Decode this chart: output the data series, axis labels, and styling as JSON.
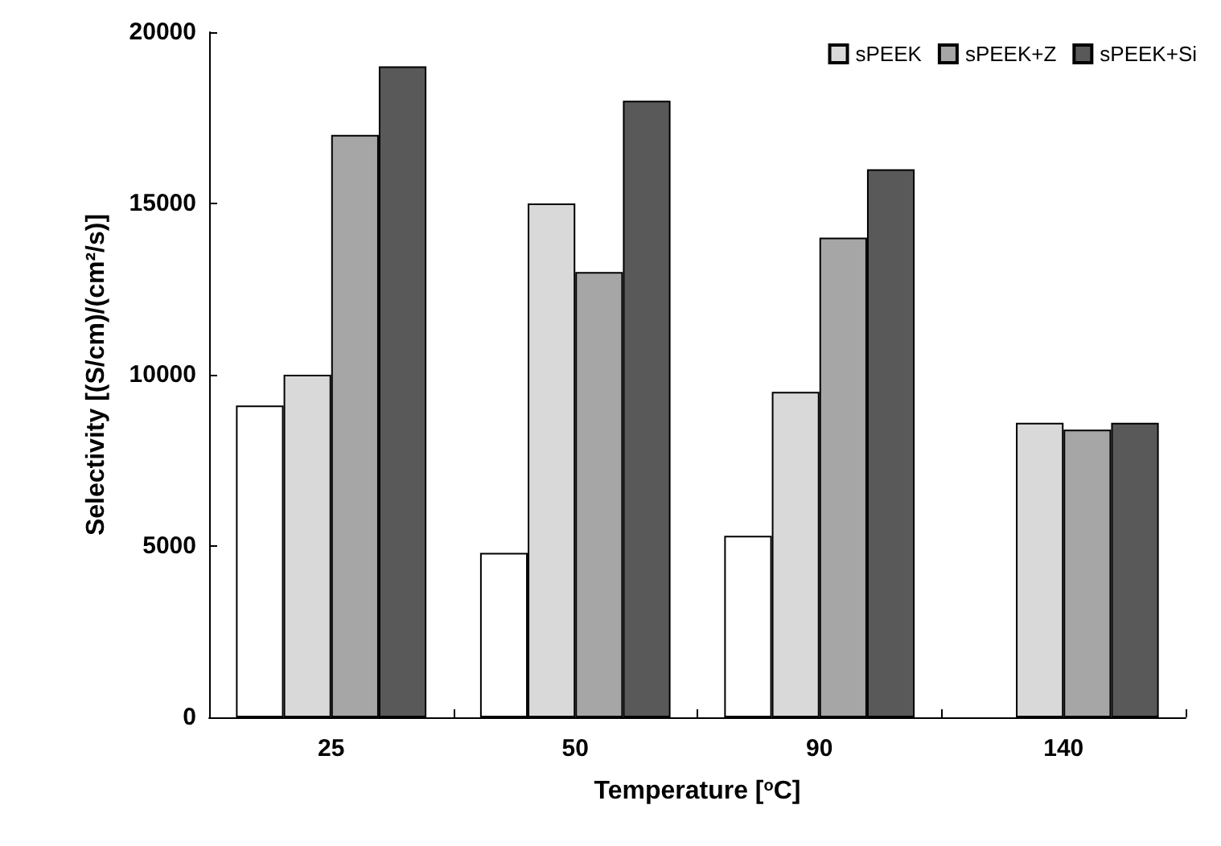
{
  "chart_data": {
    "type": "bar",
    "xlabel": "Temperature [$^{o}$C]",
    "ylabel": "Selectivity [(S/cm)/(cm²/s)]",
    "categories": [
      "25",
      "50",
      "90",
      "140"
    ],
    "series": [
      {
        "color": "#ffffff",
        "values": [
          9100,
          4800,
          5300,
          null
        ]
      },
      {
        "name": "sPEEK",
        "color": "#d9d9d9",
        "values": [
          10000,
          15000,
          9500,
          8600
        ]
      },
      {
        "name": "sPEEK+Z",
        "color": "#a6a6a6",
        "values": [
          17000,
          13000,
          14000,
          8400
        ]
      },
      {
        "name": "sPEEK+Si",
        "color": "#595959",
        "values": [
          19000,
          18000,
          16000,
          8600
        ]
      }
    ],
    "ylim": [
      0,
      20000
    ],
    "yticks": [
      0,
      5000,
      10000,
      15000,
      20000
    ],
    "grid": false,
    "legend": "top right"
  }
}
